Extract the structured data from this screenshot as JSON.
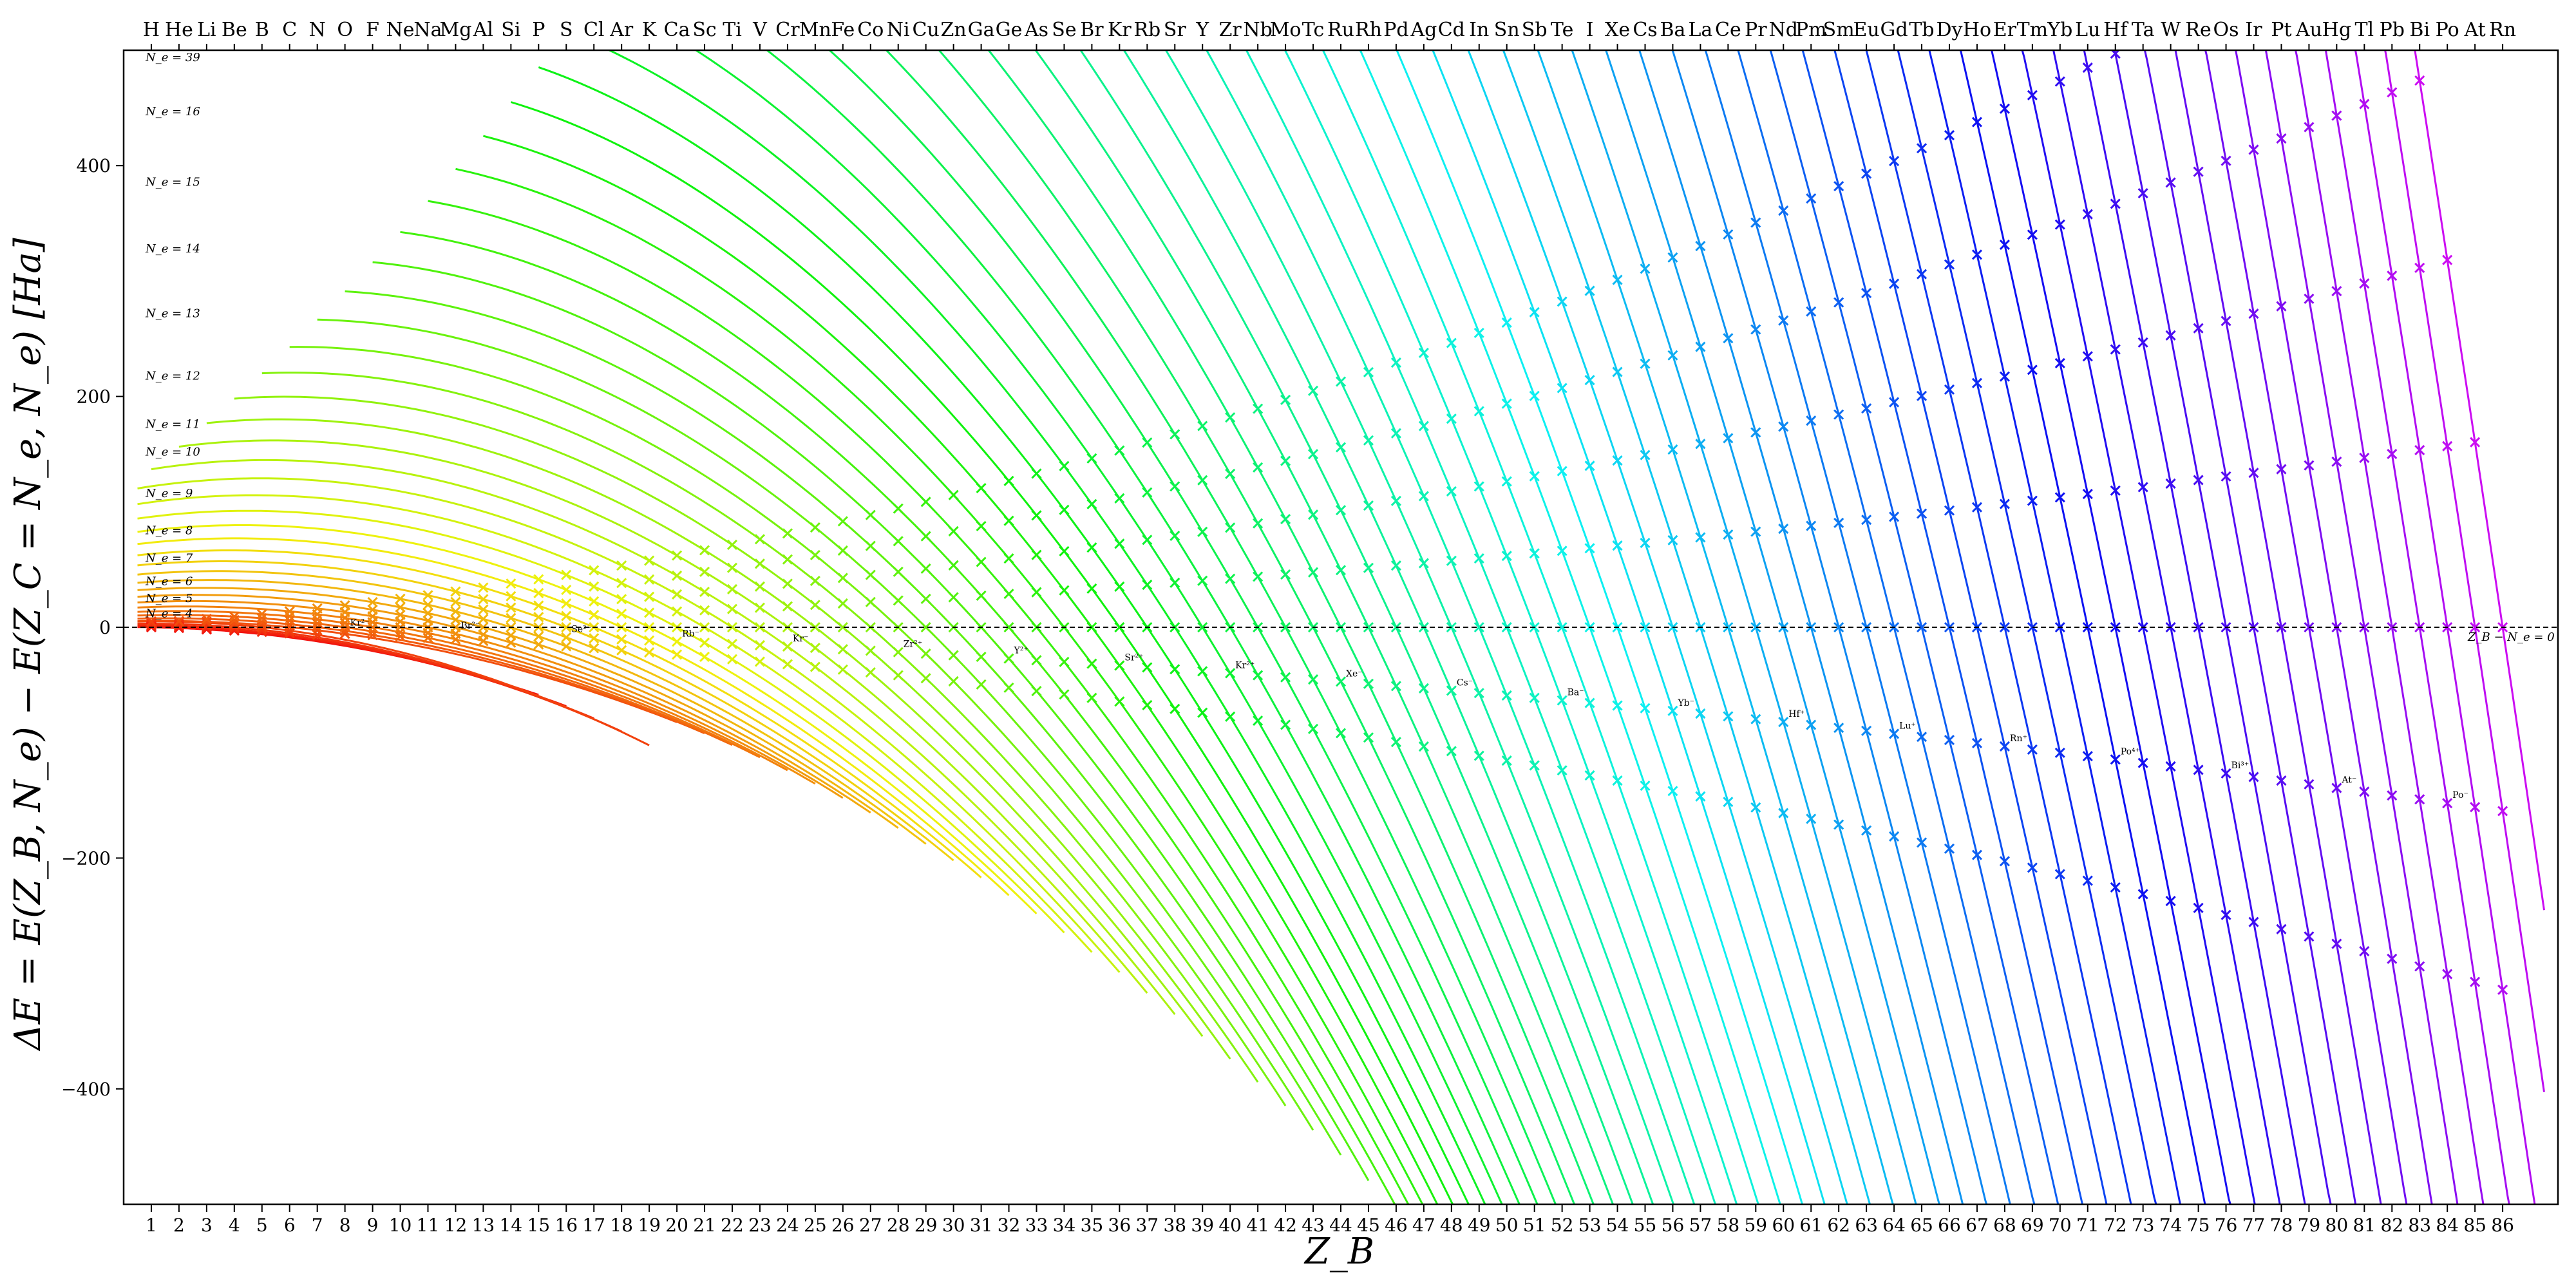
{
  "chart_data": {
    "type": "line",
    "title": "",
    "xlabel": "Z_B",
    "ylabel": "ΔE = E(Z_B, N_e) − E(Z_C = N_e, N_e) [Ha]",
    "xlim": [
      0,
      88
    ],
    "ylim": [
      -500,
      500
    ],
    "x_ticks": [
      1,
      2,
      3,
      4,
      5,
      6,
      7,
      8,
      9,
      10,
      11,
      12,
      13,
      14,
      15,
      16,
      17,
      18,
      19,
      20,
      21,
      22,
      23,
      24,
      25,
      26,
      27,
      28,
      29,
      30,
      31,
      32,
      33,
      34,
      35,
      36,
      37,
      38,
      39,
      40,
      41,
      42,
      43,
      44,
      45,
      46,
      47,
      48,
      49,
      50,
      51,
      52,
      53,
      54,
      55,
      56,
      57,
      58,
      59,
      60,
      61,
      62,
      63,
      64,
      65,
      66,
      67,
      68,
      69,
      70,
      71,
      72,
      73,
      74,
      75,
      76,
      77,
      78,
      79,
      80,
      81,
      82,
      83,
      84,
      85,
      86
    ],
    "y_ticks": [
      -400,
      -200,
      0,
      200,
      400
    ],
    "element_symbols": [
      "H",
      "He",
      "Li",
      "Be",
      "B",
      "C",
      "N",
      "O",
      "F",
      "Ne",
      "Na",
      "Mg",
      "Al",
      "Si",
      "P",
      "S",
      "Cl",
      "Ar",
      "K",
      "Ca",
      "Sc",
      "Ti",
      "V",
      "Cr",
      "Mn",
      "Fe",
      "Co",
      "Ni",
      "Cu",
      "Zn",
      "Ga",
      "Ge",
      "As",
      "Se",
      "Br",
      "Kr",
      "Rb",
      "Sr",
      "Y",
      "Zr",
      "Nb",
      "Mo",
      "Tc",
      "Ru",
      "Rh",
      "Pd",
      "Ag",
      "Cd",
      "In",
      "Sn",
      "Sb",
      "Te",
      "I",
      "Xe",
      "Cs",
      "Ba",
      "La",
      "Ce",
      "Pr",
      "Nd",
      "Pm",
      "Sm",
      "Eu",
      "Gd",
      "Tb",
      "Dy",
      "Ho",
      "Er",
      "Tm",
      "Yb",
      "Lu",
      "Hf",
      "Ta",
      "W",
      "Re",
      "Os",
      "Ir",
      "Pt",
      "Au",
      "Hg",
      "Tl",
      "Pb",
      "Bi",
      "Po",
      "At",
      "Rn"
    ],
    "curve_labels": [
      {
        "text": "N_e = 39",
        "ne": 39,
        "y": 494
      },
      {
        "text": "N_e = 16",
        "ne": 16,
        "y": 447
      },
      {
        "text": "N_e = 15",
        "ne": 15,
        "y": 386
      },
      {
        "text": "N_e = 14",
        "ne": 14,
        "y": 328
      },
      {
        "text": "N_e = 13",
        "ne": 13,
        "y": 272
      },
      {
        "text": "N_e = 12",
        "ne": 12,
        "y": 218
      },
      {
        "text": "N_e = 11",
        "ne": 11,
        "y": 176
      },
      {
        "text": "N_e = 10",
        "ne": 10,
        "y": 152
      },
      {
        "text": "N_e = 9",
        "ne": 9,
        "y": 116
      },
      {
        "text": "N_e = 8",
        "ne": 8,
        "y": 84
      },
      {
        "text": "N_e = 7",
        "ne": 7,
        "y": 60
      },
      {
        "text": "N_e = 6",
        "ne": 6,
        "y": 40
      },
      {
        "text": "N_e = 5",
        "ne": 5,
        "y": 25
      },
      {
        "text": "N_e = 4",
        "ne": 4,
        "y": 12
      }
    ],
    "zero_line_label": "Z_B − N_e = 0",
    "series_note": "one curve per electron count N_e = 1..86, coloured red→orange→yellow→green→cyan→blue→violet",
    "sample_point_labels": [
      "Kr²⁻",
      "Br²⁻",
      "Se²⁻",
      "Rb⁻",
      "Kr⁻",
      "Zr²⁺",
      "Y²⁺",
      "Sr²⁺",
      "Kr²⁺",
      "Xe⁻",
      "Cs⁻",
      "Ba⁻",
      "Yb⁻",
      "Hf⁺",
      "Lu⁺",
      "Rn⁺",
      "Po⁴⁺",
      "Bi³⁺",
      "At⁻",
      "Po⁻"
    ]
  }
}
